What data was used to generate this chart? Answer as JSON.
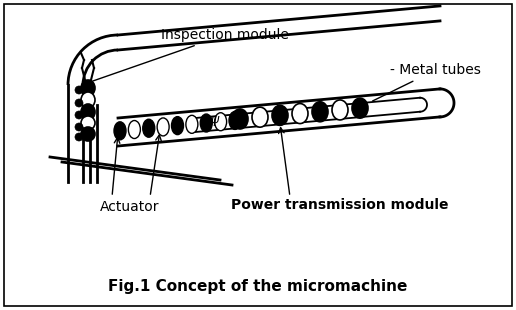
{
  "title": "Fig.1 Concept of the micromachine",
  "label_inspection": "Inspection module",
  "label_metal": "- Metal tubes",
  "label_actuator": "Actuator",
  "label_power": "Power transmission module",
  "bg_color": "#ffffff",
  "border_color": "#000000",
  "line_color": "#000000",
  "fig_width": 5.16,
  "fig_height": 3.1,
  "dpi": 100
}
